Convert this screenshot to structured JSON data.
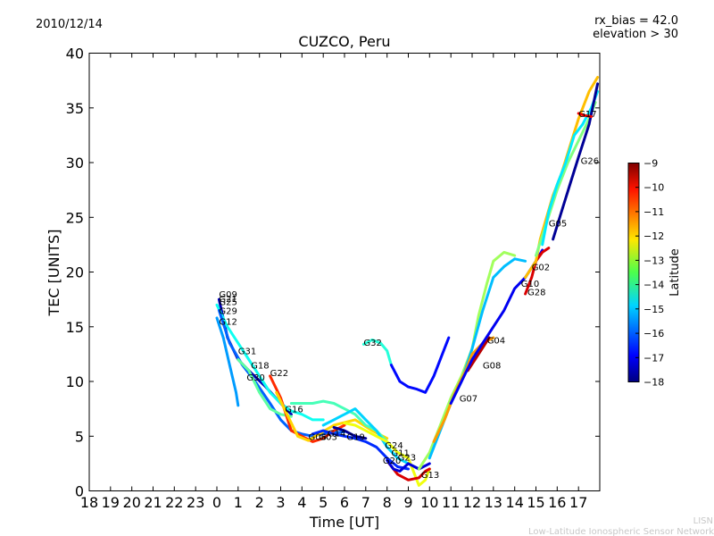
{
  "header": {
    "date": "2010/12/14",
    "rx_bias": "rx_bias = 42.0",
    "elevation": "elevation > 30",
    "title": "CUZCO, Peru"
  },
  "footer": {
    "line1": "LISN",
    "line2": "Low-Latitude Ionospheric Sensor Network"
  },
  "chart_data": {
    "type": "scatter",
    "title": "CUZCO, Peru",
    "xlabel": "Time [UT]",
    "ylabel": "TEC [UNITS]",
    "x_tick_labels": [
      "18",
      "19",
      "20",
      "21",
      "22",
      "23",
      "0",
      "1",
      "2",
      "3",
      "4",
      "5",
      "6",
      "7",
      "8",
      "9",
      "10",
      "11",
      "12",
      "13",
      "14",
      "15",
      "16",
      "17"
    ],
    "y_ticks": [
      0,
      5,
      10,
      15,
      20,
      25,
      30,
      35,
      40
    ],
    "ylim": [
      0,
      40
    ],
    "xlim_hours_from_18UT": [
      0,
      24
    ],
    "colorbar": {
      "label": "Latitude",
      "range": [
        -18,
        -9
      ],
      "ticks": [
        -9,
        -10,
        -11,
        -12,
        -13,
        -14,
        -15,
        -16,
        -17,
        -18
      ],
      "colormap": "jet"
    },
    "satellite_labels": [
      {
        "name": "G09",
        "t": 0.1,
        "tec": 18.0
      },
      {
        "name": "G21",
        "t": 0.1,
        "tec": 17.6
      },
      {
        "name": "G25",
        "t": 0.1,
        "tec": 17.3
      },
      {
        "name": "G29",
        "t": 0.1,
        "tec": 16.5
      },
      {
        "name": "G12",
        "t": 0.1,
        "tec": 15.5
      },
      {
        "name": "G31",
        "t": 1.0,
        "tec": 12.8
      },
      {
        "name": "G18",
        "t": 1.6,
        "tec": 11.5
      },
      {
        "name": "G30",
        "t": 1.4,
        "tec": 10.4
      },
      {
        "name": "G22",
        "t": 2.5,
        "tec": 10.8
      },
      {
        "name": "G16",
        "t": 3.2,
        "tec": 7.5
      },
      {
        "name": "G06",
        "t": 4.3,
        "tec": 5.0
      },
      {
        "name": "G03",
        "t": 4.8,
        "tec": 5.0
      },
      {
        "name": "G14",
        "t": 5.2,
        "tec": 5.3
      },
      {
        "name": "G19",
        "t": 6.1,
        "tec": 5.0
      },
      {
        "name": "G32",
        "t": 6.9,
        "tec": 13.6
      },
      {
        "name": "G24",
        "t": 7.9,
        "tec": 4.2
      },
      {
        "name": "G11",
        "t": 8.2,
        "tec": 3.5
      },
      {
        "name": "G23",
        "t": 8.5,
        "tec": 3.1
      },
      {
        "name": "G20",
        "t": 7.8,
        "tec": 2.8
      },
      {
        "name": "G13",
        "t": 9.6,
        "tec": 1.5
      },
      {
        "name": "G07",
        "t": 11.4,
        "tec": 8.5
      },
      {
        "name": "G08",
        "t": 12.5,
        "tec": 11.5
      },
      {
        "name": "G04",
        "t": 12.7,
        "tec": 13.8
      },
      {
        "name": "G10",
        "t": 14.3,
        "tec": 19.0
      },
      {
        "name": "G28",
        "t": 14.6,
        "tec": 18.2
      },
      {
        "name": "G02",
        "t": 14.8,
        "tec": 20.5
      },
      {
        "name": "G05",
        "t": 15.6,
        "tec": 24.5
      },
      {
        "name": "G26",
        "t": 17.1,
        "tec": 30.2
      },
      {
        "name": "G17",
        "t": 17.0,
        "tec": 34.5
      }
    ],
    "series": [
      {
        "lat": -15.5,
        "points": [
          [
            0.0,
            15.8
          ],
          [
            0.3,
            14.0
          ],
          [
            0.6,
            11.5
          ],
          [
            0.9,
            9.0
          ],
          [
            1.0,
            7.8
          ]
        ]
      },
      {
        "lat": -17.5,
        "points": [
          [
            0.1,
            17.5
          ],
          [
            0.5,
            14.0
          ],
          [
            1.0,
            12.0
          ],
          [
            1.6,
            10.8
          ],
          [
            2.3,
            9.5
          ],
          [
            3.0,
            8.0
          ],
          [
            3.5,
            7.0
          ]
        ]
      },
      {
        "lat": -14.5,
        "points": [
          [
            0.0,
            17.0
          ],
          [
            0.5,
            15.0
          ],
          [
            1.0,
            13.5
          ],
          [
            1.5,
            12.0
          ],
          [
            2.0,
            10.5
          ],
          [
            2.5,
            9.0
          ],
          [
            3.0,
            8.0
          ],
          [
            3.5,
            7.3
          ],
          [
            4.0,
            7.0
          ],
          [
            4.5,
            6.5
          ],
          [
            5.0,
            6.5
          ]
        ]
      },
      {
        "lat": -16.0,
        "points": [
          [
            0.1,
            16.5
          ],
          [
            0.6,
            13.5
          ],
          [
            1.2,
            11.5
          ],
          [
            1.8,
            10.0
          ],
          [
            2.5,
            8.0
          ],
          [
            3.0,
            6.5
          ],
          [
            3.5,
            5.5
          ],
          [
            4.0,
            5.2
          ],
          [
            4.5,
            5.0
          ],
          [
            5.0,
            5.2
          ],
          [
            5.5,
            5.3
          ],
          [
            6.0,
            5.4
          ]
        ]
      },
      {
        "lat": -13.8,
        "points": [
          [
            1.0,
            12.0
          ],
          [
            1.5,
            11.0
          ],
          [
            2.0,
            9.0
          ],
          [
            2.5,
            7.5
          ],
          [
            3.0,
            7.0
          ],
          [
            3.5,
            6.8
          ]
        ]
      },
      {
        "lat": -10.5,
        "points": [
          [
            2.5,
            10.5
          ],
          [
            3.0,
            8.5
          ],
          [
            3.5,
            5.5
          ],
          [
            4.0,
            5.0
          ],
          [
            4.5,
            4.5
          ],
          [
            5.0,
            4.8
          ],
          [
            5.5,
            5.5
          ],
          [
            6.0,
            6.0
          ]
        ]
      },
      {
        "lat": -12.0,
        "points": [
          [
            2.8,
            9.0
          ],
          [
            3.3,
            7.0
          ],
          [
            3.8,
            5.0
          ],
          [
            4.3,
            4.6
          ],
          [
            4.8,
            5.2
          ],
          [
            5.5,
            6.0
          ],
          [
            6.5,
            6.5
          ],
          [
            7.3,
            5.5
          ],
          [
            8.0,
            4.8
          ]
        ]
      },
      {
        "lat": -14.0,
        "points": [
          [
            3.5,
            8.0
          ],
          [
            4.0,
            8.0
          ],
          [
            4.5,
            8.0
          ],
          [
            5.0,
            8.2
          ],
          [
            5.5,
            8.0
          ],
          [
            6.0,
            7.5
          ],
          [
            6.5,
            7.0
          ],
          [
            7.0,
            6.0
          ],
          [
            7.5,
            5.5
          ],
          [
            8.0,
            4.5
          ],
          [
            8.5,
            3.5
          ],
          [
            9.0,
            3.0
          ]
        ]
      },
      {
        "lat": -15.0,
        "points": [
          [
            5.0,
            6.0
          ],
          [
            5.5,
            6.5
          ],
          [
            6.0,
            7.0
          ],
          [
            6.5,
            7.5
          ],
          [
            7.0,
            6.5
          ],
          [
            7.5,
            5.5
          ],
          [
            8.0,
            4.0
          ],
          [
            8.5,
            3.0
          ],
          [
            9.0,
            2.5
          ],
          [
            9.5,
            2.0
          ]
        ]
      },
      {
        "lat": -16.5,
        "points": [
          [
            4.5,
            5.2
          ],
          [
            5.0,
            5.5
          ],
          [
            5.5,
            5.2
          ],
          [
            6.0,
            5.0
          ],
          [
            6.5,
            4.8
          ],
          [
            7.0,
            4.5
          ],
          [
            7.5,
            4.0
          ],
          [
            8.0,
            3.0
          ],
          [
            8.5,
            2.2
          ],
          [
            9.0,
            2.0
          ]
        ]
      },
      {
        "lat": -17.8,
        "points": [
          [
            5.5,
            5.8
          ],
          [
            6.0,
            5.5
          ],
          [
            6.5,
            5.0
          ],
          [
            7.0,
            4.8
          ]
        ]
      },
      {
        "lat": -12.5,
        "points": [
          [
            6.0,
            6.2
          ],
          [
            6.5,
            6.0
          ],
          [
            7.0,
            5.5
          ],
          [
            7.5,
            5.0
          ],
          [
            8.0,
            4.5
          ],
          [
            8.5,
            3.5
          ],
          [
            9.0,
            3.0
          ],
          [
            9.5,
            0.5
          ],
          [
            9.8,
            1.0
          ],
          [
            10.0,
            2.0
          ]
        ]
      },
      {
        "lat": -14.3,
        "points": [
          [
            6.9,
            13.4
          ],
          [
            7.3,
            13.8
          ],
          [
            7.7,
            13.5
          ],
          [
            8.0,
            12.8
          ],
          [
            8.2,
            11.5
          ]
        ]
      },
      {
        "lat": -16.8,
        "points": [
          [
            8.2,
            11.5
          ],
          [
            8.6,
            10.0
          ],
          [
            9.0,
            9.5
          ],
          [
            9.4,
            9.3
          ],
          [
            9.8,
            9.0
          ],
          [
            10.2,
            10.5
          ],
          [
            10.6,
            12.5
          ],
          [
            10.9,
            14.0
          ]
        ]
      },
      {
        "lat": -9.8,
        "points": [
          [
            8.1,
            2.5
          ],
          [
            8.5,
            1.5
          ],
          [
            9.0,
            1.0
          ],
          [
            9.5,
            1.2
          ],
          [
            9.8,
            1.8
          ],
          [
            10.0,
            2.0
          ]
        ]
      },
      {
        "lat": -17.2,
        "points": [
          [
            8.0,
            2.8
          ],
          [
            8.3,
            2.0
          ],
          [
            8.6,
            1.8
          ],
          [
            9.0,
            2.5
          ],
          [
            9.5,
            2.0
          ],
          [
            10.0,
            2.5
          ]
        ]
      },
      {
        "lat": -13.2,
        "points": [
          [
            9.5,
            2.0
          ],
          [
            10.0,
            3.5
          ],
          [
            10.5,
            6.0
          ],
          [
            11.0,
            8.5
          ],
          [
            11.5,
            10.5
          ],
          [
            12.0,
            13.0
          ],
          [
            12.3,
            16.0
          ],
          [
            12.7,
            19.0
          ],
          [
            13.0,
            21.0
          ],
          [
            13.5,
            21.8
          ],
          [
            14.0,
            21.5
          ]
        ]
      },
      {
        "lat": -15.2,
        "points": [
          [
            10.0,
            3.0
          ],
          [
            10.5,
            5.5
          ],
          [
            11.0,
            8.0
          ],
          [
            11.5,
            10.0
          ],
          [
            12.0,
            13.0
          ],
          [
            12.5,
            16.5
          ],
          [
            13.0,
            19.5
          ],
          [
            13.5,
            20.5
          ],
          [
            14.0,
            21.2
          ],
          [
            14.5,
            21.0
          ]
        ]
      },
      {
        "lat": -11.5,
        "points": [
          [
            10.2,
            4.5
          ],
          [
            10.7,
            6.5
          ],
          [
            11.2,
            9.0
          ],
          [
            11.7,
            11.0
          ],
          [
            12.0,
            12.5
          ],
          [
            12.5,
            13.5
          ],
          [
            13.0,
            14.0
          ]
        ]
      },
      {
        "lat": -9.5,
        "points": [
          [
            11.8,
            11.0
          ],
          [
            12.3,
            12.5
          ],
          [
            12.8,
            14.0
          ]
        ]
      },
      {
        "lat": -17.0,
        "points": [
          [
            11.0,
            8.0
          ],
          [
            11.5,
            10.0
          ],
          [
            12.0,
            12.0
          ],
          [
            12.5,
            13.5
          ],
          [
            13.0,
            15.0
          ],
          [
            13.5,
            16.5
          ],
          [
            14.0,
            18.5
          ],
          [
            14.5,
            19.5
          ],
          [
            15.0,
            21.0
          ],
          [
            15.3,
            22.0
          ]
        ]
      },
      {
        "lat": -9.8,
        "points": [
          [
            14.5,
            18.0
          ],
          [
            14.8,
            19.5
          ],
          [
            15.0,
            21.0
          ],
          [
            15.3,
            21.8
          ],
          [
            15.6,
            22.2
          ]
        ]
      },
      {
        "lat": -11.8,
        "points": [
          [
            14.5,
            19.5
          ],
          [
            15.0,
            21.0
          ],
          [
            15.2,
            23.0
          ],
          [
            15.5,
            25.0
          ],
          [
            15.8,
            27.0
          ],
          [
            16.2,
            29.0
          ],
          [
            16.6,
            31.5
          ],
          [
            17.0,
            34.0
          ],
          [
            17.5,
            36.5
          ],
          [
            17.9,
            37.8
          ]
        ]
      },
      {
        "lat": -13.5,
        "points": [
          [
            15.0,
            21.5
          ],
          [
            15.5,
            24.5
          ],
          [
            16.0,
            27.5
          ],
          [
            16.5,
            30.0
          ],
          [
            17.0,
            32.0
          ],
          [
            17.5,
            34.0
          ],
          [
            17.8,
            35.5
          ]
        ]
      },
      {
        "lat": -14.8,
        "points": [
          [
            15.3,
            22.5
          ],
          [
            15.6,
            25.5
          ],
          [
            16.0,
            28.0
          ],
          [
            16.4,
            30.0
          ],
          [
            16.8,
            32.5
          ],
          [
            17.2,
            33.5
          ],
          [
            17.6,
            35.0
          ],
          [
            17.9,
            36.5
          ]
        ]
      },
      {
        "lat": -17.8,
        "points": [
          [
            15.8,
            23.0
          ],
          [
            16.2,
            25.5
          ],
          [
            16.6,
            28.0
          ],
          [
            17.0,
            30.5
          ],
          [
            17.5,
            33.5
          ],
          [
            17.9,
            37.2
          ]
        ]
      },
      {
        "lat": -10.0,
        "points": [
          [
            17.0,
            34.5
          ],
          [
            17.3,
            34.3
          ],
          [
            17.6,
            34.2
          ]
        ]
      }
    ]
  }
}
